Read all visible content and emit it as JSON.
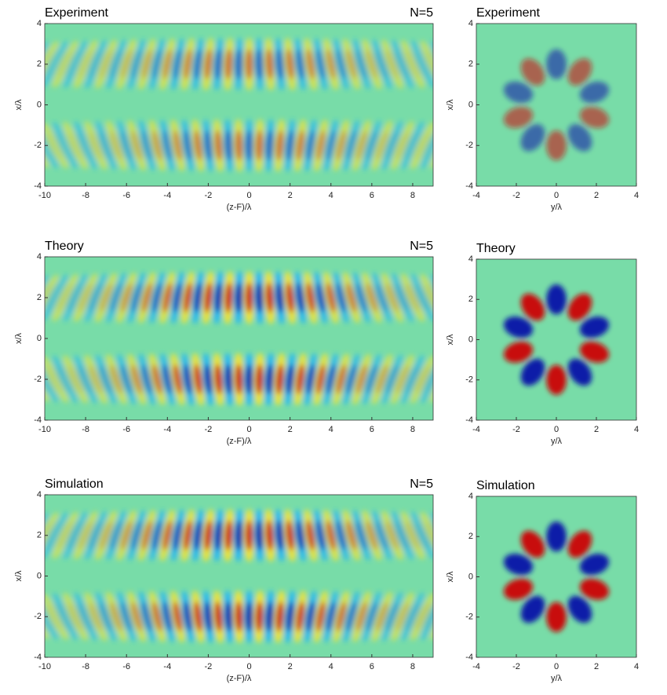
{
  "chart_data": [
    {
      "type": "heatmap",
      "title": "Experiment",
      "annotation": "N=5",
      "xlabel": "(z-F)/λ",
      "ylabel": "x/λ",
      "xlim": [
        -10,
        9
      ],
      "ylim": [
        -4,
        4
      ],
      "xticks": [
        -10,
        -8,
        -6,
        -4,
        -2,
        0,
        2,
        4,
        6,
        8
      ],
      "yticks": [
        -4,
        -2,
        0,
        2,
        4
      ]
    },
    {
      "type": "heatmap",
      "title": "Experiment",
      "xlabel": "y/λ",
      "ylabel": "x/λ",
      "xlim": [
        -4,
        4
      ],
      "ylim": [
        -4,
        4
      ],
      "xticks": [
        -4,
        -2,
        0,
        2,
        4
      ],
      "yticks": [
        -4,
        -2,
        0,
        2,
        4
      ]
    },
    {
      "type": "heatmap",
      "title": "Theory",
      "annotation": "N=5",
      "xlabel": "(z-F)/λ",
      "ylabel": "x/λ",
      "xlim": [
        -10,
        9
      ],
      "ylim": [
        -4,
        4
      ],
      "xticks": [
        -10,
        -8,
        -6,
        -4,
        -2,
        0,
        2,
        4,
        6,
        8
      ],
      "yticks": [
        -4,
        -2,
        0,
        2,
        4
      ]
    },
    {
      "type": "heatmap",
      "title": "Theory",
      "xlabel": "y/λ",
      "ylabel": "x/λ",
      "xlim": [
        -4,
        4
      ],
      "ylim": [
        -4,
        4
      ],
      "xticks": [
        -4,
        -2,
        0,
        2,
        4
      ],
      "yticks": [
        -4,
        -2,
        0,
        2,
        4
      ]
    },
    {
      "type": "heatmap",
      "title": "Simulation",
      "annotation": "N=5",
      "xlabel": "(z-F)/λ",
      "ylabel": "x/λ",
      "xlim": [
        -10,
        9
      ],
      "ylim": [
        -4,
        4
      ],
      "xticks": [
        -10,
        -8,
        -6,
        -4,
        -2,
        0,
        2,
        4,
        6,
        8
      ],
      "yticks": [
        -4,
        -2,
        0,
        2,
        4
      ]
    },
    {
      "type": "heatmap",
      "title": "Simulation",
      "xlabel": "y/λ",
      "ylabel": "x/λ",
      "xlim": [
        -4,
        4
      ],
      "ylim": [
        -4,
        4
      ],
      "xticks": [
        -4,
        -2,
        0,
        2,
        4
      ],
      "yticks": [
        -4,
        -2,
        0,
        2,
        4
      ]
    }
  ]
}
